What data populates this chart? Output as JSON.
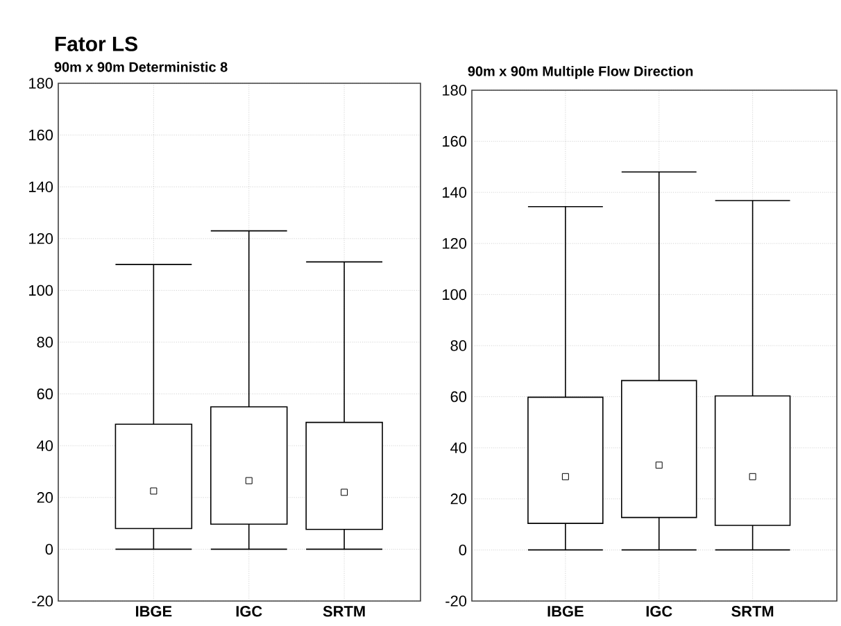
{
  "chart_data": [
    {
      "type": "box",
      "title": "Fator LS",
      "subtitle": "90m x 90m Deterministic 8",
      "categories": [
        "IBGE",
        "IGC",
        "SRTM"
      ],
      "boxes": [
        {
          "low": 0,
          "q1": 8,
          "median": 22.5,
          "q3": 48.3,
          "high": 110
        },
        {
          "low": 0,
          "q1": 9.7,
          "median": 26.5,
          "q3": 55,
          "high": 123
        },
        {
          "low": 0,
          "q1": 7.7,
          "median": 22,
          "q3": 49,
          "high": 111
        }
      ],
      "ylim": [
        -20,
        180
      ],
      "yticks": [
        -20,
        0,
        20,
        40,
        60,
        80,
        100,
        120,
        140,
        160,
        180
      ],
      "grid": true
    },
    {
      "type": "box",
      "title": "90m x 90m Multiple Flow Direction",
      "categories": [
        "IBGE",
        "IGC",
        "SRTM"
      ],
      "boxes": [
        {
          "low": 0,
          "q1": 10.4,
          "median": 28.7,
          "q3": 59.8,
          "high": 134.4
        },
        {
          "low": 0,
          "q1": 12.7,
          "median": 33.2,
          "q3": 66.3,
          "high": 148
        },
        {
          "low": 0,
          "q1": 9.6,
          "median": 28.7,
          "q3": 60.3,
          "high": 136.8
        }
      ],
      "ylim": [
        -20,
        180
      ],
      "yticks": [
        -20,
        0,
        20,
        40,
        60,
        80,
        100,
        120,
        140,
        160,
        180
      ],
      "grid": true
    }
  ]
}
